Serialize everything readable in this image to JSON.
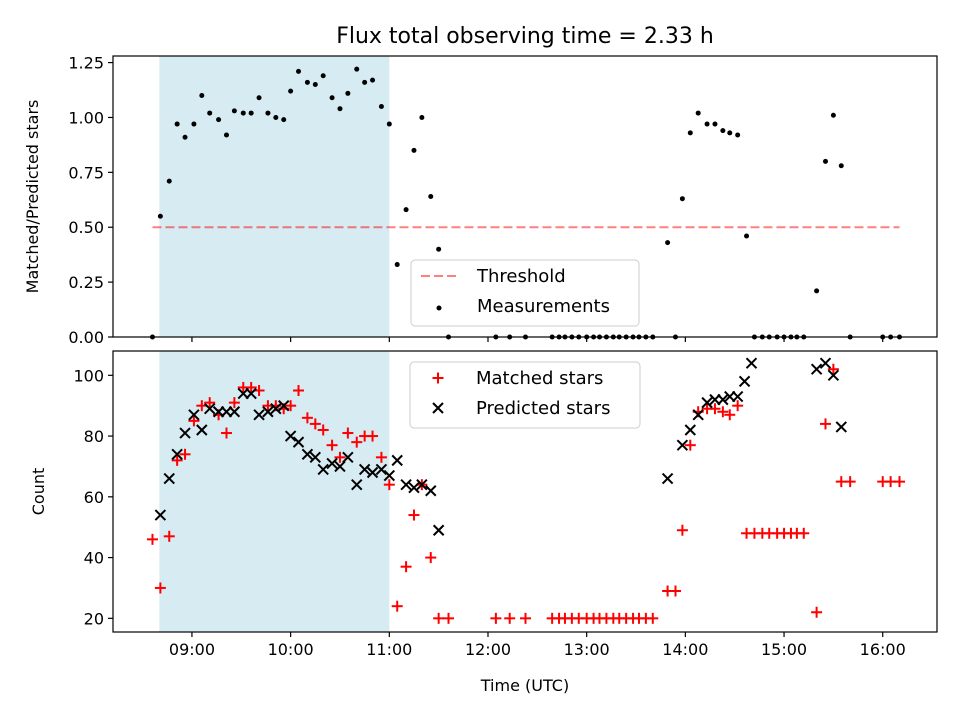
{
  "title": "Flux total observing time = 2.33 h",
  "colors": {
    "shade": "#add8e6",
    "threshold": "#ff0000",
    "measurement": "#000000",
    "matched": "#ff0000",
    "predicted": "#000000"
  },
  "chart_data": [
    {
      "type": "scatter",
      "ylabel": "Matched/Predicted stars",
      "xlim": [
        8.2,
        16.55
      ],
      "ylim": [
        0,
        1.28
      ],
      "y_ticks": [
        0.0,
        0.25,
        0.5,
        0.75,
        1.0,
        1.25
      ],
      "y_tick_labels": [
        "0.00",
        "0.25",
        "0.50",
        "0.75",
        "1.00",
        "1.25"
      ],
      "shaded_span": [
        8.67,
        11.0
      ],
      "threshold": {
        "name": "Threshold",
        "value": 0.5,
        "x_range": [
          8.6,
          16.17
        ]
      },
      "legend": {
        "position": "lower center",
        "entries": [
          "Threshold",
          "Measurements"
        ]
      },
      "series": [
        {
          "name": "Measurements",
          "points": [
            [
              8.6,
              0.0
            ],
            [
              8.68,
              0.55
            ],
            [
              8.77,
              0.71
            ],
            [
              8.85,
              0.97
            ],
            [
              8.93,
              0.91
            ],
            [
              9.02,
              0.97
            ],
            [
              9.1,
              1.1
            ],
            [
              9.18,
              1.02
            ],
            [
              9.27,
              0.99
            ],
            [
              9.35,
              0.92
            ],
            [
              9.43,
              1.03
            ],
            [
              9.52,
              1.02
            ],
            [
              9.6,
              1.02
            ],
            [
              9.68,
              1.09
            ],
            [
              9.77,
              1.02
            ],
            [
              9.85,
              1.0
            ],
            [
              9.93,
              0.99
            ],
            [
              10.0,
              1.12
            ],
            [
              10.08,
              1.21
            ],
            [
              10.17,
              1.16
            ],
            [
              10.25,
              1.15
            ],
            [
              10.33,
              1.19
            ],
            [
              10.42,
              1.09
            ],
            [
              10.5,
              1.04
            ],
            [
              10.58,
              1.11
            ],
            [
              10.67,
              1.22
            ],
            [
              10.75,
              1.16
            ],
            [
              10.83,
              1.17
            ],
            [
              10.92,
              1.05
            ],
            [
              11.0,
              0.97
            ],
            [
              11.08,
              0.33
            ],
            [
              11.17,
              0.58
            ],
            [
              11.25,
              0.85
            ],
            [
              11.33,
              1.0
            ],
            [
              11.42,
              0.64
            ],
            [
              11.5,
              0.4
            ],
            [
              11.6,
              0.0
            ],
            [
              12.08,
              0.0
            ],
            [
              12.22,
              0.0
            ],
            [
              12.38,
              0.0
            ],
            [
              12.65,
              0.0
            ],
            [
              12.72,
              0.0
            ],
            [
              12.78,
              0.0
            ],
            [
              12.85,
              0.0
            ],
            [
              12.92,
              0.0
            ],
            [
              13.0,
              0.0
            ],
            [
              13.07,
              0.0
            ],
            [
              13.13,
              0.0
            ],
            [
              13.2,
              0.0
            ],
            [
              13.27,
              0.0
            ],
            [
              13.33,
              0.0
            ],
            [
              13.4,
              0.0
            ],
            [
              13.47,
              0.0
            ],
            [
              13.53,
              0.0
            ],
            [
              13.6,
              0.0
            ],
            [
              13.67,
              0.0
            ],
            [
              13.82,
              0.43
            ],
            [
              13.9,
              0.0
            ],
            [
              13.97,
              0.63
            ],
            [
              14.05,
              0.93
            ],
            [
              14.13,
              1.02
            ],
            [
              14.22,
              0.97
            ],
            [
              14.3,
              0.97
            ],
            [
              14.38,
              0.94
            ],
            [
              14.45,
              0.93
            ],
            [
              14.53,
              0.92
            ],
            [
              14.62,
              0.46
            ],
            [
              14.7,
              0.0
            ],
            [
              14.78,
              0.0
            ],
            [
              14.85,
              0.0
            ],
            [
              14.93,
              0.0
            ],
            [
              15.0,
              0.0
            ],
            [
              15.07,
              0.0
            ],
            [
              15.13,
              0.0
            ],
            [
              15.2,
              0.0
            ],
            [
              15.33,
              0.21
            ],
            [
              15.42,
              0.8
            ],
            [
              15.5,
              1.01
            ],
            [
              15.58,
              0.78
            ],
            [
              15.67,
              0.0
            ],
            [
              16.0,
              0.0
            ],
            [
              16.08,
              0.0
            ],
            [
              16.17,
              0.0
            ]
          ]
        }
      ]
    },
    {
      "type": "scatter",
      "ylabel": "Count",
      "xlabel": "Time (UTC)",
      "xlim": [
        8.2,
        16.55
      ],
      "ylim": [
        15.5,
        108
      ],
      "x_ticks": [
        9,
        10,
        11,
        12,
        13,
        14,
        15,
        16
      ],
      "x_tick_labels": [
        "09:00",
        "10:00",
        "11:00",
        "12:00",
        "13:00",
        "14:00",
        "15:00",
        "16:00"
      ],
      "y_ticks": [
        20,
        40,
        60,
        80,
        100
      ],
      "y_tick_labels": [
        "20",
        "40",
        "60",
        "80",
        "100"
      ],
      "shaded_span": [
        8.67,
        11.0
      ],
      "legend": {
        "position": "upper center",
        "entries": [
          "Matched stars",
          "Predicted stars"
        ]
      },
      "series": [
        {
          "name": "Matched stars",
          "points": [
            [
              8.6,
              46
            ],
            [
              8.68,
              30
            ],
            [
              8.77,
              47
            ],
            [
              8.85,
              72
            ],
            [
              8.93,
              74
            ],
            [
              9.02,
              85
            ],
            [
              9.1,
              90
            ],
            [
              9.18,
              91
            ],
            [
              9.27,
              87
            ],
            [
              9.35,
              81
            ],
            [
              9.43,
              91
            ],
            [
              9.52,
              96
            ],
            [
              9.6,
              96
            ],
            [
              9.68,
              95
            ],
            [
              9.77,
              90
            ],
            [
              9.85,
              90
            ],
            [
              9.93,
              89
            ],
            [
              10.0,
              90
            ],
            [
              10.08,
              95
            ],
            [
              10.17,
              86
            ],
            [
              10.25,
              84
            ],
            [
              10.33,
              82
            ],
            [
              10.42,
              77
            ],
            [
              10.5,
              73
            ],
            [
              10.58,
              81
            ],
            [
              10.67,
              78
            ],
            [
              10.75,
              80
            ],
            [
              10.83,
              80
            ],
            [
              10.92,
              73
            ],
            [
              11.0,
              64
            ],
            [
              11.08,
              24
            ],
            [
              11.17,
              37
            ],
            [
              11.25,
              54
            ],
            [
              11.33,
              64
            ],
            [
              11.42,
              40
            ],
            [
              11.5,
              20
            ],
            [
              11.6,
              20
            ],
            [
              12.08,
              20
            ],
            [
              12.22,
              20
            ],
            [
              12.38,
              20
            ],
            [
              12.65,
              20
            ],
            [
              12.72,
              20
            ],
            [
              12.78,
              20
            ],
            [
              12.85,
              20
            ],
            [
              12.92,
              20
            ],
            [
              13.0,
              20
            ],
            [
              13.07,
              20
            ],
            [
              13.13,
              20
            ],
            [
              13.2,
              20
            ],
            [
              13.27,
              20
            ],
            [
              13.33,
              20
            ],
            [
              13.4,
              20
            ],
            [
              13.47,
              20
            ],
            [
              13.53,
              20
            ],
            [
              13.6,
              20
            ],
            [
              13.67,
              20
            ],
            [
              13.82,
              29
            ],
            [
              13.9,
              29
            ],
            [
              13.97,
              49
            ],
            [
              14.05,
              77
            ],
            [
              14.13,
              88
            ],
            [
              14.22,
              89
            ],
            [
              14.3,
              89
            ],
            [
              14.38,
              88
            ],
            [
              14.45,
              87
            ],
            [
              14.53,
              90
            ],
            [
              14.62,
              48
            ],
            [
              14.7,
              48
            ],
            [
              14.78,
              48
            ],
            [
              14.85,
              48
            ],
            [
              14.93,
              48
            ],
            [
              15.0,
              48
            ],
            [
              15.07,
              48
            ],
            [
              15.13,
              48
            ],
            [
              15.2,
              48
            ],
            [
              15.33,
              22
            ],
            [
              15.42,
              84
            ],
            [
              15.5,
              102
            ],
            [
              15.58,
              65
            ],
            [
              15.67,
              65
            ],
            [
              16.0,
              65
            ],
            [
              16.08,
              65
            ],
            [
              16.17,
              65
            ]
          ]
        },
        {
          "name": "Predicted stars",
          "points": [
            [
              8.68,
              54
            ],
            [
              8.77,
              66
            ],
            [
              8.85,
              74
            ],
            [
              8.93,
              81
            ],
            [
              9.02,
              87
            ],
            [
              9.1,
              82
            ],
            [
              9.18,
              89
            ],
            [
              9.27,
              88
            ],
            [
              9.35,
              88
            ],
            [
              9.43,
              88
            ],
            [
              9.52,
              94
            ],
            [
              9.6,
              94
            ],
            [
              9.68,
              87
            ],
            [
              9.77,
              88
            ],
            [
              9.85,
              89
            ],
            [
              9.93,
              90
            ],
            [
              10.0,
              80
            ],
            [
              10.08,
              78
            ],
            [
              10.17,
              74
            ],
            [
              10.25,
              73
            ],
            [
              10.33,
              69
            ],
            [
              10.42,
              71
            ],
            [
              10.5,
              70
            ],
            [
              10.58,
              73
            ],
            [
              10.67,
              64
            ],
            [
              10.75,
              69
            ],
            [
              10.83,
              68
            ],
            [
              10.92,
              69
            ],
            [
              11.0,
              67
            ],
            [
              11.08,
              72
            ],
            [
              11.17,
              64
            ],
            [
              11.25,
              63
            ],
            [
              11.33,
              64
            ],
            [
              11.42,
              62
            ],
            [
              11.5,
              49
            ],
            [
              13.82,
              66
            ],
            [
              13.97,
              77
            ],
            [
              14.05,
              82
            ],
            [
              14.13,
              87
            ],
            [
              14.22,
              91
            ],
            [
              14.3,
              92
            ],
            [
              14.38,
              92
            ],
            [
              14.45,
              93
            ],
            [
              14.53,
              93
            ],
            [
              14.6,
              98
            ],
            [
              14.67,
              104
            ],
            [
              15.33,
              102
            ],
            [
              15.42,
              104
            ],
            [
              15.5,
              100
            ],
            [
              15.58,
              83
            ]
          ]
        }
      ]
    }
  ]
}
